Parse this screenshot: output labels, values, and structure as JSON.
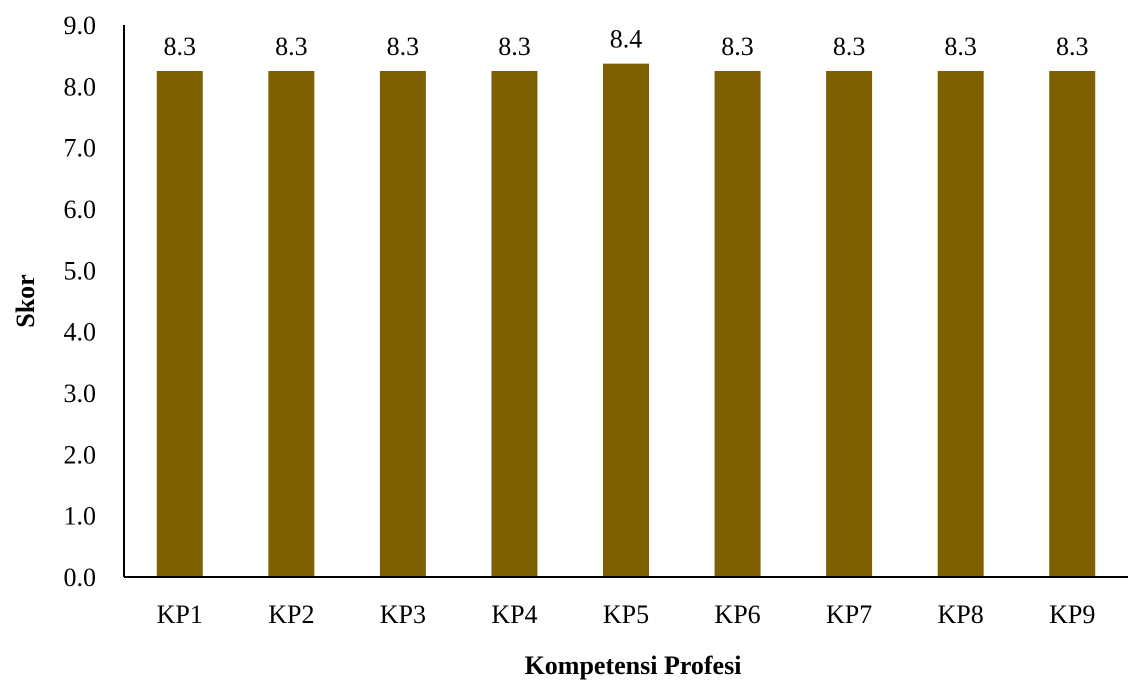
{
  "chart_data": {
    "type": "bar",
    "categories": [
      "KP1",
      "KP2",
      "KP3",
      "KP4",
      "KP5",
      "KP6",
      "KP7",
      "KP8",
      "KP9"
    ],
    "values": [
      8.25,
      8.25,
      8.25,
      8.25,
      8.37,
      8.25,
      8.25,
      8.25,
      8.25
    ],
    "data_labels": [
      "8.3",
      "8.3",
      "8.3",
      "8.3",
      "8.4",
      "8.3",
      "8.3",
      "8.3",
      "8.3"
    ],
    "xlabel": "Kompetensi Profesi",
    "ylabel": "Skor",
    "ylim": [
      0,
      9
    ],
    "yticks": [
      "0.0",
      "1.0",
      "2.0",
      "3.0",
      "4.0",
      "5.0",
      "6.0",
      "7.0",
      "8.0",
      "9.0"
    ],
    "grid": false,
    "legend": "none",
    "bar_color": "#7f6000"
  }
}
